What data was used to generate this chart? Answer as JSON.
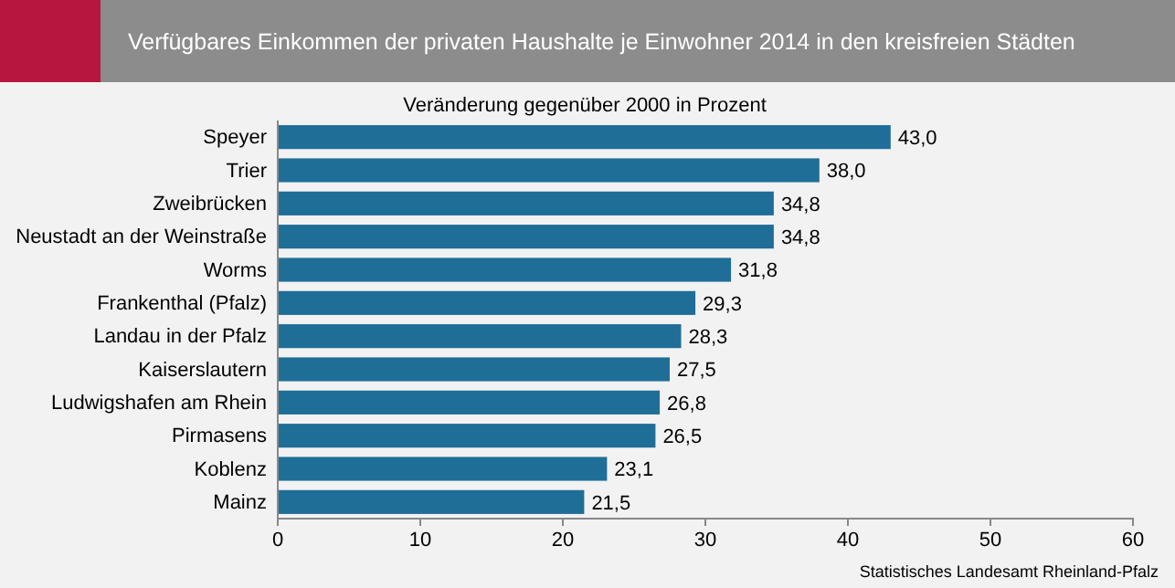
{
  "chart_data": {
    "type": "bar",
    "orientation": "horizontal",
    "title": "Verfügbares Einkommen der privaten Haushalte je Einwohner 2014 in den kreisfreien Städten",
    "subtitle": "Veränderung gegenüber 2000 in Prozent",
    "categories": [
      "Speyer",
      "Trier",
      "Zweibrücken",
      "Neustadt an der Weinstraße",
      "Worms",
      "Frankenthal (Pfalz)",
      "Landau in der Pfalz",
      "Kaiserslautern",
      "Ludwigshafen am Rhein",
      "Pirmasens",
      "Koblenz",
      "Mainz"
    ],
    "values": [
      43.0,
      38.0,
      34.8,
      34.8,
      31.8,
      29.3,
      28.3,
      27.5,
      26.8,
      26.5,
      23.1,
      21.5
    ],
    "value_labels": [
      "43,0",
      "38,0",
      "34,8",
      "34,8",
      "31,8",
      "29,3",
      "28,3",
      "27,5",
      "26,8",
      "26,5",
      "23,1",
      "21,5"
    ],
    "color": "#1f6e98",
    "xlim": [
      0,
      60
    ],
    "xticks": [
      0,
      10,
      20,
      30,
      40,
      50,
      60
    ],
    "grid": false,
    "annotations": [
      "Statistisches Landesamt Rheinland-Pfalz"
    ]
  }
}
